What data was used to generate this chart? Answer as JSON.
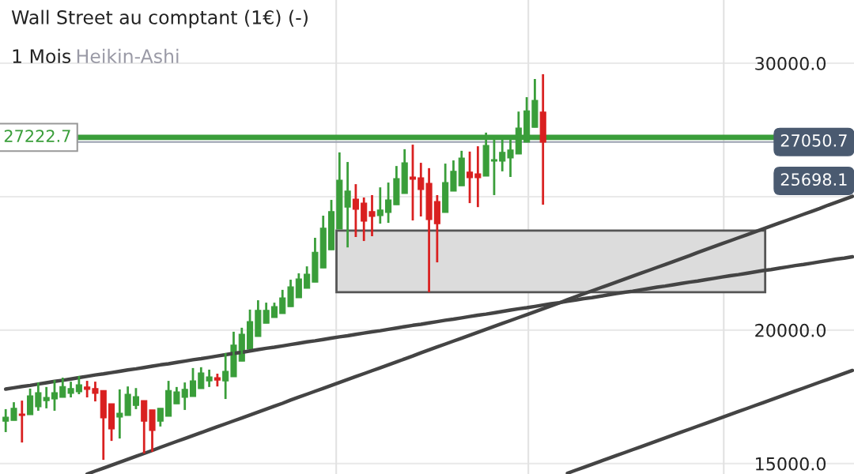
{
  "chart_data": {
    "type": "candlestick",
    "title": "Wall Street au comptant (1€) (-)",
    "subtitle": "1 Mois",
    "categories": [
      null,
      null,
      null,
      null,
      null,
      null,
      null,
      null,
      null,
      null,
      null,
      null,
      null,
      null,
      null,
      null,
      null,
      null,
      null,
      null,
      null,
      null,
      null,
      null,
      null,
      null,
      null,
      null,
      null,
      null,
      null,
      null,
      null,
      null,
      null,
      null,
      null,
      null,
      null,
      null,
      null,
      null,
      null,
      null,
      null,
      null,
      null,
      null,
      null,
      null,
      null,
      null,
      null,
      null,
      null,
      null,
      null,
      null,
      null,
      null,
      null,
      null,
      null,
      null,
      null,
      null,
      null,
      null,
      null,
      null,
      null,
      null,
      null,
      null,
      null,
      null,
      null,
      null,
      null,
      null,
      null,
      null,
      null,
      null,
      null,
      null,
      null,
      null,
      null,
      null,
      null,
      null,
      null,
      null,
      null,
      null,
      null,
      null,
      null,
      null,
      null,
      null,
      null,
      null,
      null
    ],
    "ohlc": [
      [
        16590,
        17040,
        16180,
        16740
      ],
      [
        16620,
        17300,
        16620,
        17070
      ],
      [
        16860,
        17360,
        15790,
        16800
      ],
      [
        16830,
        17810,
        16830,
        17540
      ],
      [
        17130,
        18040,
        16980,
        17660
      ],
      [
        17360,
        17870,
        17070,
        17480
      ],
      [
        17420,
        18130,
        16980,
        17660
      ],
      [
        17480,
        18220,
        17480,
        17890
      ],
      [
        17630,
        18070,
        17480,
        17810
      ],
      [
        17690,
        18280,
        17600,
        17950
      ],
      [
        17870,
        18100,
        17480,
        17780
      ],
      [
        17810,
        18070,
        17330,
        17630
      ],
      [
        17740,
        17740,
        15140,
        16710
      ],
      [
        17240,
        17240,
        15850,
        16300
      ],
      [
        16740,
        17780,
        15940,
        16890
      ],
      [
        16800,
        17890,
        16800,
        17600
      ],
      [
        17180,
        17830,
        17040,
        17510
      ],
      [
        17360,
        17360,
        15380,
        16590
      ],
      [
        17010,
        17010,
        15440,
        16240
      ],
      [
        16590,
        17070,
        16390,
        17070
      ],
      [
        16770,
        18100,
        16770,
        17740
      ],
      [
        17240,
        17870,
        17240,
        17690
      ],
      [
        17480,
        18040,
        17010,
        17780
      ],
      [
        17510,
        18580,
        17510,
        18100
      ],
      [
        17810,
        18610,
        17810,
        18400
      ],
      [
        18100,
        18520,
        17870,
        18250
      ],
      [
        18220,
        18370,
        17890,
        18130
      ],
      [
        18100,
        19140,
        17420,
        18460
      ],
      [
        18250,
        19940,
        18250,
        19440
      ],
      [
        18840,
        20090,
        18840,
        19850
      ],
      [
        19290,
        20770,
        19290,
        20320
      ],
      [
        19760,
        21120,
        19760,
        20740
      ],
      [
        20260,
        21030,
        20260,
        20740
      ],
      [
        20470,
        21030,
        20470,
        20880
      ],
      [
        20620,
        21510,
        20620,
        21210
      ],
      [
        20880,
        21890,
        20880,
        21620
      ],
      [
        21210,
        22130,
        21210,
        21920
      ],
      [
        21570,
        22390,
        21570,
        22100
      ],
      [
        21800,
        23460,
        21800,
        22920
      ],
      [
        22330,
        24290,
        22330,
        23820
      ],
      [
        23010,
        24880,
        23010,
        24440
      ],
      [
        23790,
        26660,
        23790,
        25620
      ],
      [
        24610,
        26300,
        23100,
        25210
      ],
      [
        24910,
        25470,
        23490,
        24530
      ],
      [
        24760,
        24970,
        23340,
        24080
      ],
      [
        24440,
        25060,
        23520,
        24260
      ],
      [
        24290,
        25350,
        23990,
        24500
      ],
      [
        24410,
        25530,
        24020,
        24880
      ],
      [
        24700,
        26150,
        24700,
        25680
      ],
      [
        25120,
        26780,
        25120,
        26270
      ],
      [
        25740,
        26950,
        24110,
        25650
      ],
      [
        25710,
        26270,
        24260,
        25270
      ],
      [
        25500,
        26070,
        21420,
        24140
      ],
      [
        24820,
        25060,
        22540,
        23990
      ],
      [
        24410,
        26240,
        24410,
        25530
      ],
      [
        25210,
        26360,
        25210,
        25950
      ],
      [
        25410,
        26720,
        25410,
        26450
      ],
      [
        25920,
        26690,
        24760,
        25710
      ],
      [
        25860,
        26890,
        24610,
        25710
      ],
      [
        25770,
        27400,
        25770,
        26920
      ],
      [
        26330,
        27130,
        25060,
        26390
      ],
      [
        26330,
        27280,
        25950,
        26660
      ],
      [
        26450,
        27130,
        25740,
        26750
      ],
      [
        26600,
        28190,
        26600,
        27570
      ],
      [
        27040,
        28730,
        27040,
        28220
      ],
      [
        27600,
        29410,
        27600,
        28610
      ],
      [
        28170,
        29590,
        24700,
        27040
      ],
      null,
      null,
      null,
      null,
      null,
      null,
      null,
      null,
      null,
      null,
      null,
      null,
      null,
      null,
      null,
      null,
      null,
      null,
      null,
      null,
      null,
      null,
      null,
      null,
      null,
      null,
      null,
      null,
      null,
      null,
      null,
      null,
      null,
      null,
      null,
      null,
      null,
      null
    ],
    "colors": [
      "#3a9e3a",
      "#3a9e3a",
      "#d92020",
      "#3a9e3a",
      "#3a9e3a",
      "#3a9e3a",
      "#3a9e3a",
      "#3a9e3a",
      "#3a9e3a",
      "#3a9e3a",
      "#d92020",
      "#d92020",
      "#d92020",
      "#d92020",
      "#3a9e3a",
      "#3a9e3a",
      "#3a9e3a",
      "#d92020",
      "#d92020",
      "#3a9e3a",
      "#3a9e3a",
      "#3a9e3a",
      "#3a9e3a",
      "#3a9e3a",
      "#3a9e3a",
      "#3a9e3a",
      "#d92020",
      "#3a9e3a",
      "#3a9e3a",
      "#3a9e3a",
      "#3a9e3a",
      "#3a9e3a",
      "#3a9e3a",
      "#3a9e3a",
      "#3a9e3a",
      "#3a9e3a",
      "#3a9e3a",
      "#3a9e3a",
      "#3a9e3a",
      "#3a9e3a",
      "#3a9e3a",
      "#3a9e3a",
      "#3a9e3a",
      "#d92020",
      "#d92020",
      "#d92020",
      "#3a9e3a",
      "#3a9e3a",
      "#3a9e3a",
      "#3a9e3a",
      "#d92020",
      "#d92020",
      "#d92020",
      "#d92020",
      "#3a9e3a",
      "#3a9e3a",
      "#3a9e3a",
      "#d92020",
      "#d92020",
      "#3a9e3a",
      "#3a9e3a",
      "#3a9e3a",
      "#3a9e3a",
      "#3a9e3a",
      "#3a9e3a",
      "#3a9e3a",
      "#d92020",
      null,
      null,
      null,
      null,
      null,
      null,
      null,
      null,
      null,
      null,
      null,
      null,
      null,
      null,
      null,
      null,
      null,
      null,
      null,
      null,
      null,
      null,
      null,
      null,
      null,
      null,
      null,
      null,
      null,
      null,
      null,
      null,
      null,
      null,
      null,
      null,
      null,
      null
    ],
    "series": [
      {
        "type": "line",
        "color": "#444444",
        "values": [
          17790,
          17840,
          17890,
          17930,
          17980,
          18030,
          18080,
          18120,
          18170,
          18220,
          18270,
          18320,
          18360,
          18410,
          18460,
          18510,
          18550,
          18600,
          18650,
          18700,
          18740,
          18790,
          18840,
          18890,
          18930,
          18980,
          19030,
          19080,
          19130,
          19170,
          19220,
          19270,
          19320,
          19360,
          19410,
          19460,
          19510,
          19560,
          19600,
          19650,
          19700,
          19750,
          19790,
          19840,
          19890,
          19940,
          19980,
          20030,
          20080,
          20130,
          20180,
          20220,
          20270,
          20320,
          20370,
          20410,
          20460,
          20510,
          20560,
          20600,
          20650,
          20700,
          20750,
          20800,
          20840,
          20890,
          20940,
          20990,
          21030,
          21080,
          21130,
          21180,
          21220,
          21270,
          21320,
          21370,
          21420,
          21460,
          21510,
          21560,
          21610,
          21650,
          21700,
          21750,
          21800,
          21840,
          21890,
          21940,
          21990,
          22040,
          22080,
          22130,
          22180,
          22230,
          22270,
          22320,
          22370,
          22420,
          22460,
          22510,
          22560,
          22610,
          22660,
          22700,
          22750
        ]
      },
      {
        "type": "line",
        "color": "#444444",
        "values": [
          null,
          null,
          null,
          null,
          null,
          null,
          null,
          null,
          null,
          null,
          14610,
          14720,
          14830,
          14940,
          15050,
          15160,
          15270,
          15380,
          15490,
          15610,
          15720,
          15830,
          15940,
          16050,
          16160,
          16270,
          16380,
          16490,
          16600,
          16710,
          16820,
          16930,
          17040,
          17150,
          17260,
          17380,
          17490,
          17600,
          17710,
          17820,
          17930,
          18040,
          18150,
          18260,
          18370,
          18480,
          18590,
          18700,
          18810,
          18920,
          19030,
          19150,
          19260,
          19370,
          19480,
          19590,
          19700,
          19810,
          19920,
          20030,
          20140,
          20250,
          20360,
          20470,
          20580,
          20690,
          20800,
          20910,
          21020,
          21140,
          21250,
          21360,
          21470,
          21580,
          21690,
          21800,
          21910,
          22020,
          22130,
          22240,
          22350,
          22460,
          22570,
          22680,
          22790,
          22910,
          23020,
          23130,
          23240,
          23350,
          23460,
          23570,
          23680,
          23790,
          23900,
          24010,
          24120,
          24230,
          24340,
          24450,
          24560,
          24680,
          24790,
          24900,
          25010
        ]
      },
      {
        "type": "line",
        "color": "#444444",
        "values": [
          null,
          null,
          null,
          null,
          null,
          null,
          null,
          null,
          null,
          null,
          null,
          null,
          null,
          null,
          null,
          null,
          null,
          null,
          null,
          null,
          null,
          null,
          null,
          null,
          null,
          null,
          null,
          null,
          null,
          null,
          null,
          null,
          null,
          null,
          null,
          null,
          null,
          null,
          null,
          null,
          null,
          null,
          null,
          null,
          null,
          null,
          null,
          null,
          null,
          null,
          null,
          null,
          null,
          null,
          null,
          null,
          null,
          null,
          null,
          null,
          null,
          null,
          null,
          null,
          null,
          null,
          null,
          null,
          null,
          14640,
          14750,
          14860,
          14970,
          15080,
          15190,
          15300,
          15410,
          15520,
          15630,
          15740,
          15850,
          15960,
          16070,
          16180,
          16290,
          16400,
          16510,
          16620,
          16730,
          16840,
          16950,
          17060,
          17170,
          17280,
          17390,
          17500,
          17610,
          17720,
          17830,
          17940,
          18050,
          18160,
          18270,
          18380,
          18490
        ]
      }
    ],
    "ylim": [
      14610,
      32370
    ],
    "yticks": [
      {
        "value": 15000,
        "label": "15000.0"
      },
      {
        "value": 20000,
        "label": "20000.0"
      },
      {
        "value": 25000,
        "label": null
      },
      {
        "value": 30000,
        "label": "30000.0"
      }
    ],
    "grid": true,
    "tick_labels": "y",
    "ref_lines": [
      {
        "axis": "y",
        "value": 27222.7,
        "label": "27222.7",
        "color": "#3a9e3a"
      },
      {
        "axis": "y",
        "value": 27050.7,
        "label": "27050.7",
        "color": "#9aa0b0"
      }
    ],
    "bands": [
      {
        "axis": "y",
        "from": 21420,
        "to": 23730,
        "color": "#dcdcdc"
      }
    ],
    "annotations": [
      "Heikin-Ashi",
      "25698.1"
    ]
  }
}
